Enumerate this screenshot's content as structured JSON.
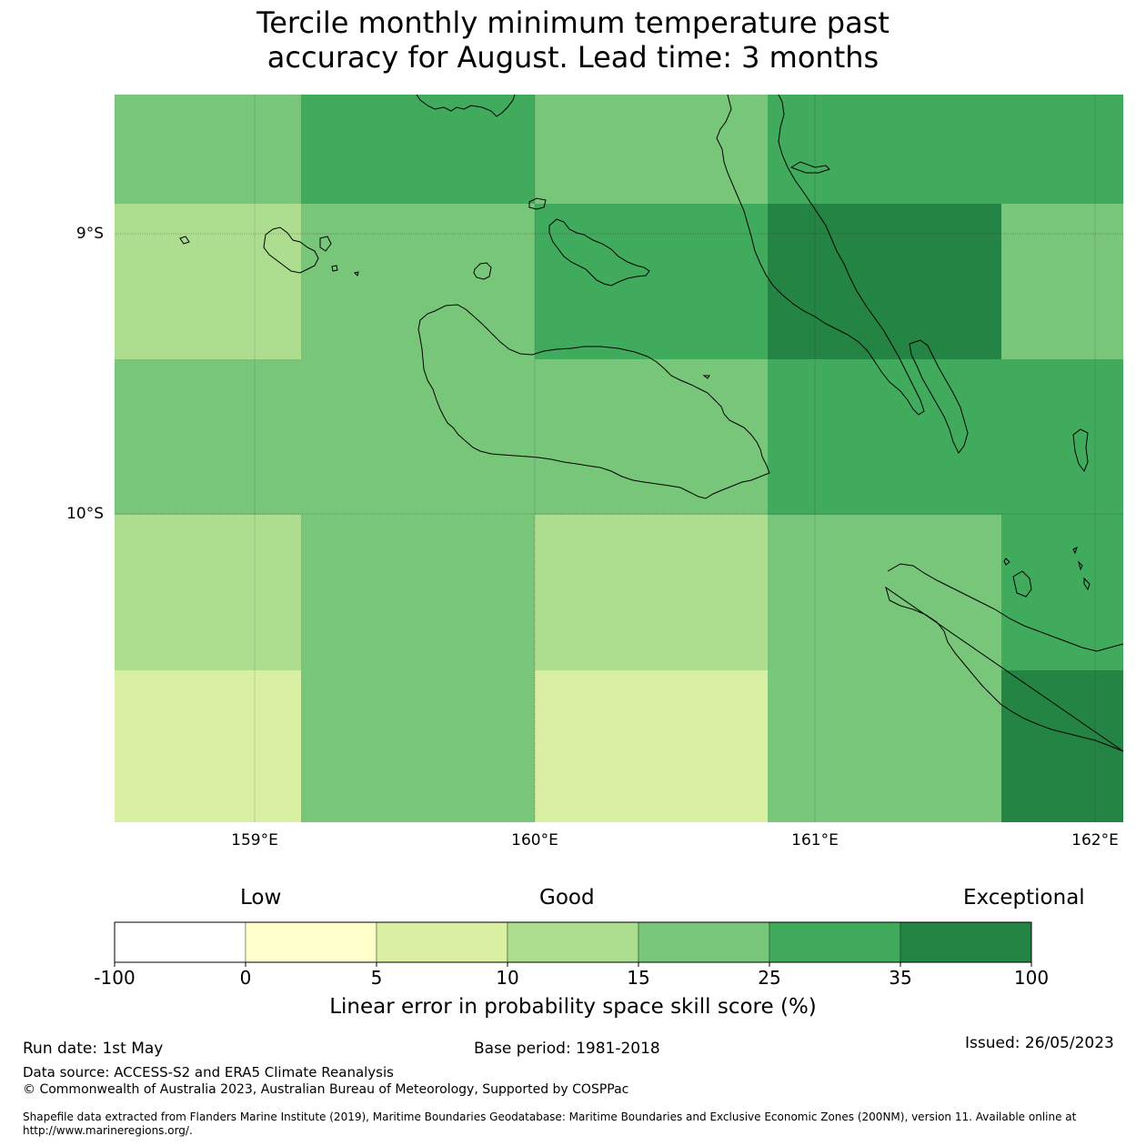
{
  "title": {
    "line1": "Tercile monthly minimum temperature past",
    "line2": "accuracy for August. Lead time: 3 months"
  },
  "map": {
    "lat_labels": [
      "9°S",
      "10°S"
    ],
    "lon_labels": [
      "159°E",
      "160°E",
      "161°E",
      "162°E"
    ],
    "grid_levels": [
      [
        "25-35",
        "35-100",
        "35-100",
        "25-35",
        "25-35",
        "35-100",
        "35-100",
        "35-100",
        "35-100",
        "35-100"
      ],
      [
        "25-35",
        "35-100",
        "35-100",
        "25-35",
        "25-35",
        "35-100",
        "35-100",
        "35-100",
        "35-100",
        "35-100"
      ],
      [
        "25-35",
        "35-100",
        "35-100",
        "25-35",
        "25-35",
        "35-100",
        "35-100",
        "35-100",
        "35-100",
        "35-100"
      ]
    ],
    "cells": [
      [
        "25-35",
        "35-100",
        "25-35",
        "35-100",
        "35-100"
      ],
      [
        "15-25",
        "25-35",
        "35-100",
        "35-100+",
        "25-35"
      ],
      [
        "25-35",
        "25-35",
        "25-35",
        "35-100",
        "35-100"
      ],
      [
        "15-25",
        "25-35",
        "15-25",
        "25-35",
        "35-100"
      ],
      [
        "10-15",
        "25-35",
        "10-15",
        "25-35",
        "35-100+"
      ]
    ]
  },
  "colorbar": {
    "category_low": "Low",
    "category_good": "Good",
    "category_exceptional": "Exceptional",
    "ticks": [
      "-100",
      "0",
      "5",
      "10",
      "15",
      "25",
      "35",
      "100"
    ],
    "colors": [
      "#ffffff",
      "#ffffcc",
      "#d9f0a3",
      "#addd8e",
      "#78c679",
      "#41ab5d",
      "#238443"
    ],
    "label": "Linear error in probability space skill score (%)"
  },
  "footer": {
    "run_date": "Run date: 1st May",
    "base_period": "Base period: 1981-2018",
    "issued": "Issued: 26/05/2023",
    "data_source": "Data source: ACCESS-S2 and ERA5 Climate Reanalysis",
    "copyright": "© Commonwealth of Australia 2023, Australian Bureau of Meteorology, Supported by COSPPac",
    "shapefile_line1": "Shapefile data extracted from Flanders Marine Institute (2019), Maritime Boundaries Geodatabase: Maritime Boundaries and Exclusive Economic Zones (200NM), version 11. Available online at",
    "shapefile_line2": "http://www.marineregions.org/."
  }
}
